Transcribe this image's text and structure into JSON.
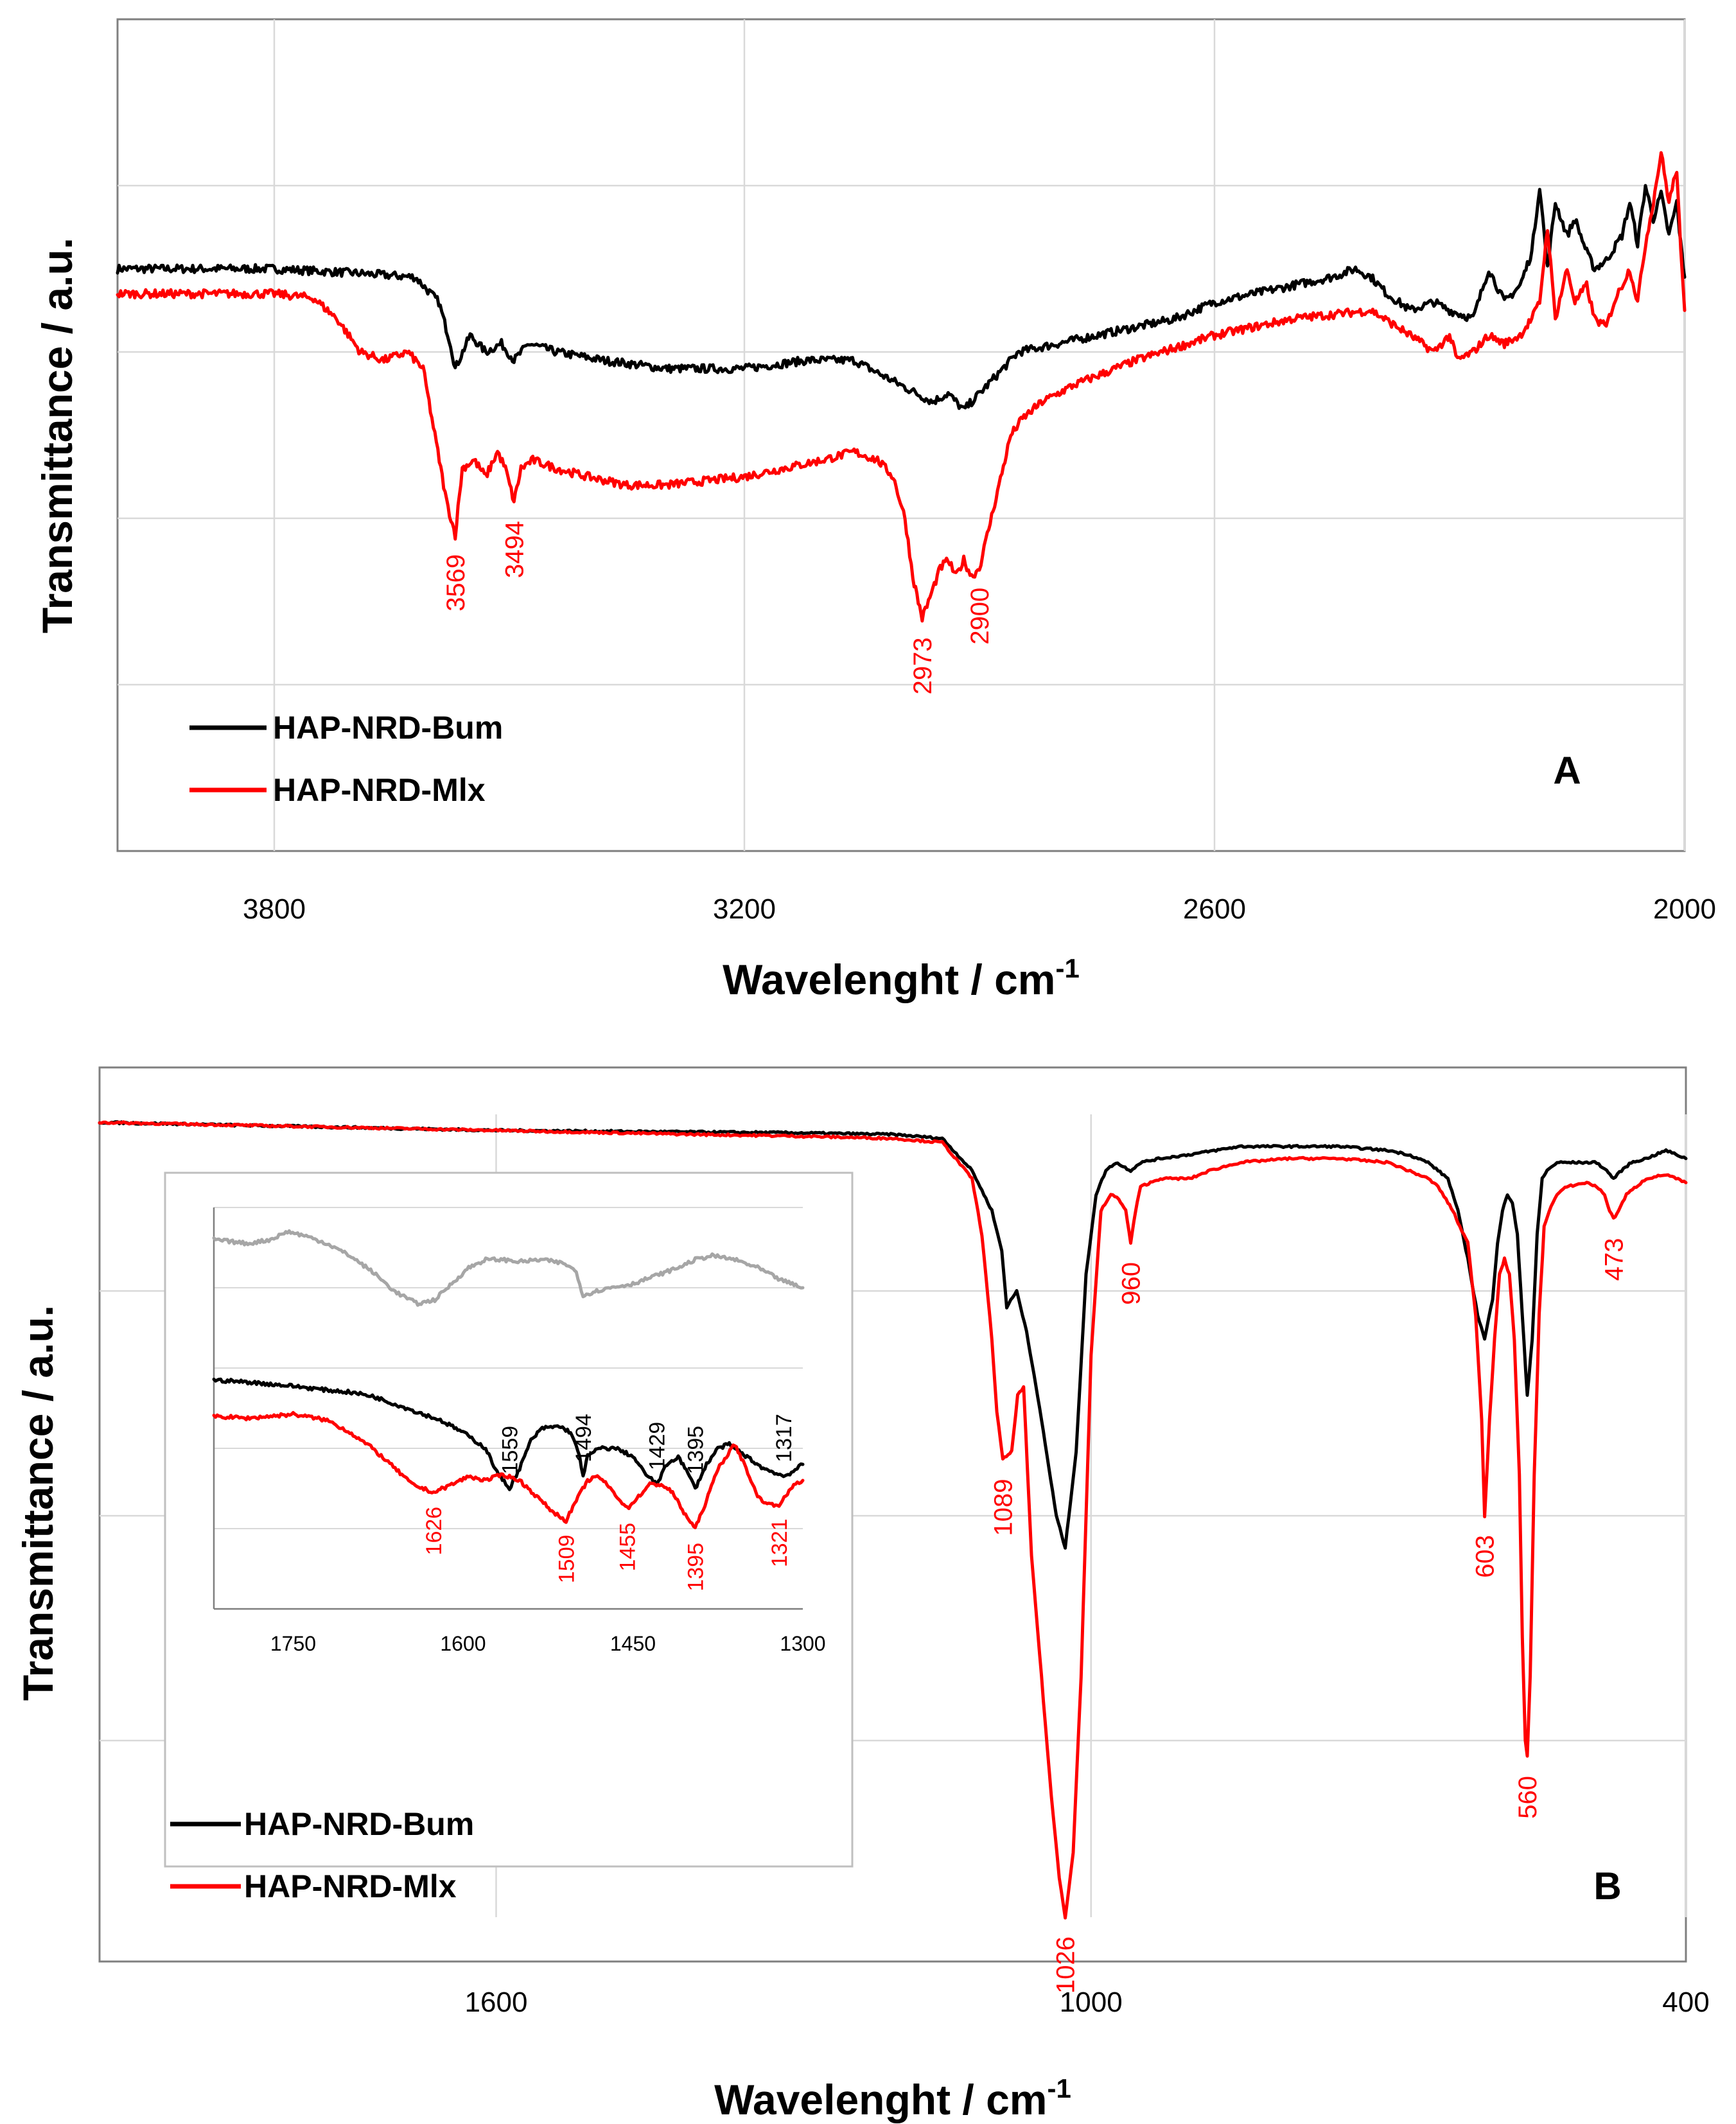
{
  "colors": {
    "bum": "#000000",
    "mlx": "#ff0000",
    "gray": "#a6a6a6"
  },
  "chart_data": [
    {
      "panel": "A",
      "type": "line",
      "xlabel": "Wavelenght / cm",
      "xlabel_superscript": "-1",
      "ylabel": "Transmittance / a.u.",
      "xlim": [
        4000,
        2000
      ],
      "xticks": [
        {
          "value": 3800,
          "label": "3800"
        },
        {
          "value": 3200,
          "label": "3200"
        },
        {
          "value": 2600,
          "label": "2600"
        },
        {
          "value": 2000,
          "label": "2000"
        }
      ],
      "ylim": [
        0,
        100
      ],
      "yticks": [
        20,
        40,
        60,
        80
      ],
      "legend": {
        "position": "bottom-left",
        "entries": [
          "HAP-NRD-Bum",
          "HAP-NRD-Mlx"
        ]
      },
      "panel_label": "A",
      "series": [
        {
          "name": "HAP-NRD-Bum",
          "color": "bum",
          "x": [
            4000,
            3800,
            3700,
            3620,
            3590,
            3575,
            3569,
            3550,
            3530,
            3510,
            3494,
            3475,
            3440,
            3380,
            3300,
            3200,
            3120,
            3060,
            3000,
            2960,
            2940,
            2920,
            2900,
            2880,
            2850,
            2800,
            2750,
            2700,
            2650,
            2600,
            2550,
            2500,
            2450,
            2420,
            2400,
            2380,
            2350,
            2320,
            2300,
            2270,
            2250,
            2230,
            2210,
            2195,
            2185,
            2175,
            2165,
            2150,
            2140,
            2125,
            2115,
            2100,
            2080,
            2070,
            2060,
            2050,
            2040,
            2030,
            2020,
            2010,
            2005,
            2000
          ],
          "y": [
            70,
            70,
            69.5,
            69,
            66,
            61,
            58,
            62,
            60,
            61,
            59,
            61,
            60,
            59,
            58,
            58,
            59,
            59,
            56,
            54,
            55,
            53,
            55,
            57,
            60,
            61,
            62,
            63,
            64,
            66,
            67,
            68,
            69,
            70,
            69,
            67,
            65,
            66,
            65,
            64,
            70,
            66,
            68,
            72,
            80,
            70,
            78,
            74,
            76,
            72,
            70,
            71,
            74,
            78,
            73,
            80,
            76,
            79,
            74,
            78,
            73,
            69
          ]
        },
        {
          "name": "HAP-NRD-Mlx",
          "color": "mlx",
          "x": [
            4000,
            3800,
            3750,
            3720,
            3690,
            3660,
            3630,
            3610,
            3595,
            3580,
            3569,
            3560,
            3545,
            3530,
            3515,
            3505,
            3494,
            3485,
            3470,
            3440,
            3400,
            3350,
            3300,
            3200,
            3150,
            3100,
            3060,
            3030,
            3010,
            2995,
            2985,
            2978,
            2973,
            2965,
            2950,
            2940,
            2930,
            2920,
            2910,
            2900,
            2890,
            2875,
            2860,
            2845,
            2820,
            2780,
            2700,
            2600,
            2500,
            2400,
            2350,
            2320,
            2300,
            2290,
            2270,
            2250,
            2230,
            2210,
            2195,
            2185,
            2175,
            2165,
            2150,
            2140,
            2125,
            2115,
            2100,
            2090,
            2080,
            2070,
            2060,
            2050,
            2040,
            2030,
            2020,
            2010,
            2005,
            2000
          ],
          "y": [
            67,
            67,
            66.5,
            64,
            60,
            59,
            60,
            58,
            50,
            42,
            38,
            46,
            47,
            45,
            48,
            46,
            42,
            46,
            47,
            46,
            45,
            44,
            44,
            45,
            46,
            47,
            48,
            47,
            45,
            40,
            33,
            30,
            28,
            30,
            34,
            35,
            33,
            35,
            33,
            34,
            38,
            44,
            50,
            52,
            54,
            56,
            59,
            62,
            64,
            65,
            62,
            60,
            62,
            59,
            60,
            62,
            61,
            62,
            64,
            66,
            75,
            64,
            70,
            66,
            68,
            64,
            63,
            66,
            68,
            70,
            66,
            73,
            78,
            84,
            78,
            82,
            72,
            65
          ]
        }
      ],
      "annotations": [
        {
          "label": "3569",
          "x": 3569,
          "y": 38,
          "color": "mlx"
        },
        {
          "label": "3494",
          "x": 3494,
          "y": 42,
          "color": "mlx"
        },
        {
          "label": "2973",
          "x": 2973,
          "y": 28,
          "color": "mlx"
        },
        {
          "label": "2900",
          "x": 2900,
          "y": 34,
          "color": "mlx"
        }
      ]
    },
    {
      "panel": "B",
      "type": "line",
      "xlabel": "Wavelenght / cm",
      "xlabel_superscript": "-1",
      "ylabel": "Transmittance / a.u.",
      "xlim": [
        2000,
        400
      ],
      "xticks": [
        {
          "value": 1600,
          "label": "1600"
        },
        {
          "value": 1000,
          "label": "1000"
        },
        {
          "value": 400,
          "label": "400"
        }
      ],
      "ylim": [
        0,
        100
      ],
      "yticks": [
        22,
        50,
        78
      ],
      "legend": {
        "position": "bottom-left",
        "entries": [
          "HAP-NRD-Bum",
          "HAP-NRD-Mlx"
        ]
      },
      "panel_label": "B",
      "series": [
        {
          "name": "HAP-NRD-Bum",
          "color": "bum",
          "x": [
            2000,
            1800,
            1600,
            1400,
            1300,
            1200,
            1150,
            1120,
            1100,
            1090,
            1085,
            1075,
            1065,
            1050,
            1035,
            1026,
            1015,
            1005,
            995,
            985,
            975,
            960,
            950,
            930,
            900,
            850,
            800,
            750,
            700,
            680,
            660,
            650,
            640,
            630,
            620,
            610,
            603,
            595,
            590,
            585,
            580,
            575,
            570,
            565,
            560,
            555,
            550,
            545,
            540,
            530,
            520,
            500,
            490,
            480,
            473,
            465,
            455,
            440,
            420,
            410,
            400
          ],
          "y": [
            99,
            98.5,
            98,
            97.8,
            97.7,
            97.5,
            97,
            93,
            88,
            83,
            76,
            78,
            73,
            62,
            50,
            46,
            58,
            80,
            90,
            93,
            94,
            93,
            94,
            94.5,
            95,
            96,
            96,
            96,
            95.5,
            95,
            94,
            93,
            92,
            88,
            82,
            75,
            72,
            77,
            84,
            88,
            90,
            89,
            85,
            75,
            65,
            72,
            85,
            92,
            93,
            94,
            94,
            94,
            94,
            93,
            92,
            93,
            94,
            94.5,
            95.5,
            95,
            94.5
          ]
        },
        {
          "name": "HAP-NRD-Mlx",
          "color": "mlx",
          "x": [
            2000,
            1800,
            1600,
            1400,
            1300,
            1200,
            1150,
            1120,
            1110,
            1100,
            1095,
            1089,
            1080,
            1074,
            1068,
            1060,
            1050,
            1040,
            1032,
            1026,
            1018,
            1010,
            1000,
            990,
            980,
            972,
            965,
            960,
            955,
            950,
            930,
            900,
            880,
            850,
            800,
            750,
            700,
            680,
            660,
            650,
            640,
            635,
            628,
            620,
            612,
            606,
            603,
            598,
            593,
            588,
            583,
            578,
            573,
            568,
            565,
            562,
            560,
            557,
            553,
            548,
            543,
            538,
            530,
            520,
            500,
            490,
            482,
            477,
            473,
            468,
            460,
            450,
            440,
            420,
            410,
            400
          ],
          "y": [
            99,
            98.5,
            98,
            97.5,
            97.3,
            97,
            96.5,
            92,
            85,
            72,
            63,
            57,
            58,
            65,
            66,
            45,
            30,
            15,
            5,
            0,
            8,
            30,
            70,
            88,
            90,
            89.5,
            88,
            84,
            88,
            91,
            92,
            92,
            93,
            94,
            94.5,
            94.5,
            94,
            93,
            92,
            91,
            89,
            88,
            86,
            84,
            75,
            62,
            50,
            62,
            72,
            80,
            82,
            80,
            72,
            55,
            35,
            22,
            20,
            30,
            55,
            75,
            86,
            88,
            90,
            91,
            91.5,
            91,
            90,
            88,
            87,
            88,
            90,
            91,
            92,
            92.5,
            92,
            91.5
          ]
        }
      ],
      "annotations": [
        {
          "label": "1089",
          "x": 1089,
          "y": 57,
          "color": "mlx"
        },
        {
          "label": "1026",
          "x": 1026,
          "y": 0,
          "color": "mlx"
        },
        {
          "label": "960",
          "x": 960,
          "y": 84,
          "color": "mlx"
        },
        {
          "label": "603",
          "x": 603,
          "y": 50,
          "color": "mlx"
        },
        {
          "label": "560",
          "x": 560,
          "y": 20,
          "color": "mlx"
        },
        {
          "label": "473",
          "x": 473,
          "y": 87,
          "color": "mlx"
        }
      ],
      "inset": {
        "type": "line",
        "xlim": [
          1820,
          1300
        ],
        "ylim": [
          0,
          100
        ],
        "xticks": [
          {
            "value": 1750,
            "label": "1750"
          },
          {
            "value": 1600,
            "label": "1600"
          },
          {
            "value": 1450,
            "label": "1450"
          },
          {
            "value": 1300,
            "label": "1300"
          }
        ],
        "yticks": [
          20,
          40,
          60,
          80,
          100
        ],
        "series": [
          {
            "name": "gray",
            "color": "gray",
            "x": [
              1820,
              1790,
              1770,
              1755,
              1740,
              1720,
              1700,
              1680,
              1660,
              1640,
              1625,
              1610,
              1595,
              1580,
              1565,
              1550,
              1530,
              1510,
              1500,
              1494,
              1485,
              1470,
              1450,
              1430,
              1410,
              1395,
              1380,
              1360,
              1340,
              1320,
              1300
            ],
            "y": [
              92,
              91,
              92,
              94,
              93,
              91,
              88,
              84,
              79,
              76,
              77,
              81,
              85,
              87,
              87,
              86.5,
              87,
              86,
              84,
              78,
              79,
              80,
              81,
              83,
              85,
              87,
              88,
              87,
              85,
              82,
              80
            ]
          },
          {
            "name": "HAP-NRD-Bum",
            "color": "bum",
            "x": [
              1820,
              1790,
              1770,
              1750,
              1720,
              1700,
              1680,
              1660,
              1640,
              1620,
              1600,
              1580,
              1570,
              1559,
              1550,
              1540,
              1530,
              1515,
              1505,
              1497,
              1494,
              1490,
              1480,
              1465,
              1450,
              1440,
              1429,
              1420,
              1410,
              1400,
              1395,
              1385,
              1375,
              1365,
              1355,
              1345,
              1335,
              1325,
              1317,
              1310,
              1305,
              1300
            ],
            "y": [
              57,
              56.5,
              56,
              55.5,
              54.5,
              54,
              53,
              51,
              49,
              47,
              44,
              40,
              34,
              30,
              35,
              42,
              45,
              45.5,
              44,
              38,
              33,
              38,
              40,
              40,
              38,
              34,
              31,
              36,
              38,
              33,
              30,
              36,
              40,
              41,
              39,
              37,
              35,
              34,
              33,
              34,
              35,
              36
            ]
          },
          {
            "name": "HAP-NRD-Mlx",
            "color": "mlx",
            "x": [
              1820,
              1790,
              1770,
              1750,
              1720,
              1700,
              1680,
              1660,
              1645,
              1626,
              1610,
              1595,
              1580,
              1565,
              1550,
              1535,
              1520,
              1509,
              1500,
              1490,
              1480,
              1470,
              1455,
              1445,
              1435,
              1425,
              1415,
              1405,
              1395,
              1385,
              1375,
              1360,
              1350,
              1340,
              1330,
              1321,
              1315,
              1308,
              1300
            ],
            "y": [
              48,
              47.5,
              48,
              48.5,
              47,
              44,
              40,
              35,
              31,
              29,
              31,
              33,
              32,
              33.5,
              32,
              28,
              24,
              22,
              27,
              32,
              33,
              30,
              25,
              28,
              31,
              31,
              29,
              24,
              20,
              27,
              35,
              41,
              35,
              28,
              26,
              26,
              28,
              31,
              32
            ]
          }
        ],
        "annotations": [
          {
            "label": "1559",
            "x": 1559,
            "y": 30,
            "color": "bum",
            "side": "above"
          },
          {
            "label": "1494",
            "x": 1494,
            "y": 33,
            "color": "bum",
            "side": "above"
          },
          {
            "label": "1429",
            "x": 1429,
            "y": 31,
            "color": "bum",
            "side": "above"
          },
          {
            "label": "1395",
            "x": 1395,
            "y": 30,
            "color": "bum",
            "side": "above"
          },
          {
            "label": "1317",
            "x": 1317,
            "y": 33,
            "color": "bum",
            "side": "above"
          },
          {
            "label": "1626",
            "x": 1626,
            "y": 29,
            "color": "mlx",
            "side": "below"
          },
          {
            "label": "1509",
            "x": 1509,
            "y": 22,
            "color": "mlx",
            "side": "below"
          },
          {
            "label": "1455",
            "x": 1455,
            "y": 25,
            "color": "mlx",
            "side": "below"
          },
          {
            "label": "1395",
            "x": 1395,
            "y": 20,
            "color": "mlx",
            "side": "below"
          },
          {
            "label": "1321",
            "x": 1321,
            "y": 26,
            "color": "mlx",
            "side": "below"
          }
        ]
      }
    }
  ]
}
